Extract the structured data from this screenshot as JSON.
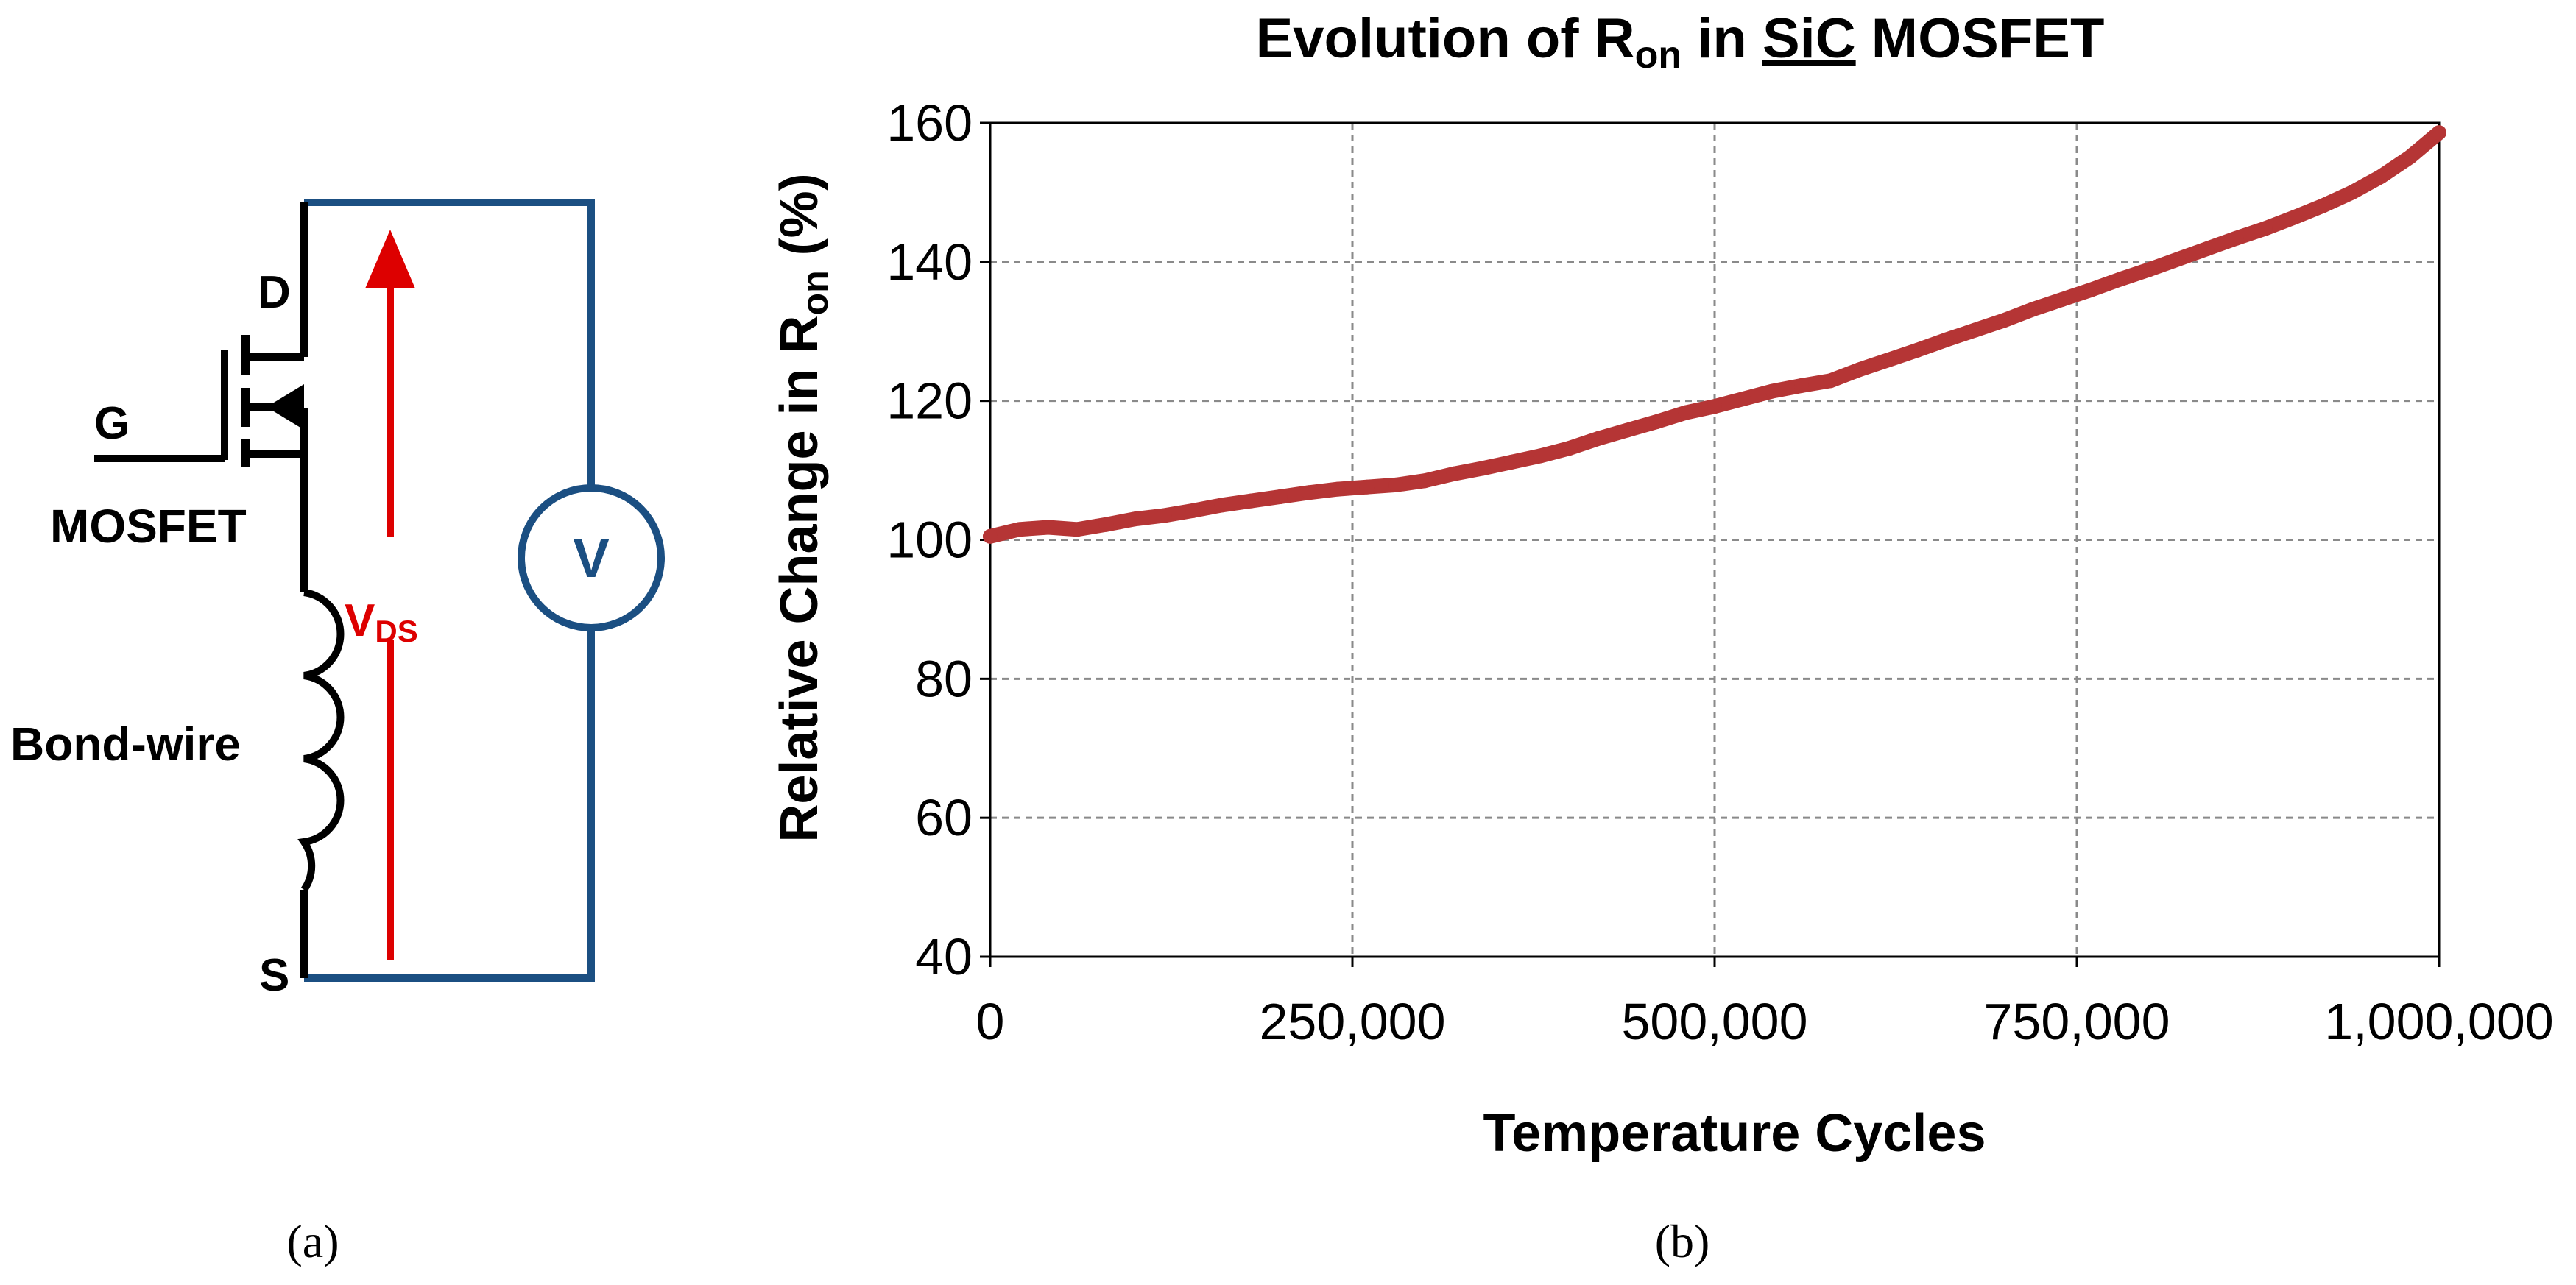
{
  "panel_a": {
    "label": "(a)",
    "drain_label": "D",
    "gate_label": "G",
    "source_label": "S",
    "device_label": "MOSFET",
    "inductor_label": "Bond-wire",
    "voltage_label_main": "V",
    "voltage_label_sub": "DS",
    "voltmeter_label": "V",
    "colors": {
      "wire": "#1b4f82",
      "arrow": "#dd0000",
      "component": "#000000"
    }
  },
  "panel_b": {
    "label": "(b)"
  },
  "chart_data": {
    "type": "line",
    "title": {
      "prefix": "Evolution of R",
      "subscript": "on",
      "middle": " in ",
      "underlined": "SiC",
      "suffix": " MOSFET"
    },
    "xlabel": "Temperature Cycles",
    "ylabel": {
      "prefix": "Relative Change in R",
      "subscript": "on",
      "suffix": " (%)"
    },
    "xlim": [
      0,
      1000000
    ],
    "ylim": [
      40,
      160
    ],
    "xticks": [
      0,
      250000,
      500000,
      750000,
      1000000
    ],
    "xtick_labels": [
      "0",
      "250,000",
      "500,000",
      "750,000",
      "1,000,000"
    ],
    "yticks": [
      40,
      60,
      80,
      100,
      120,
      140,
      160
    ],
    "ytick_labels": [
      "40",
      "60",
      "80",
      "100",
      "120",
      "140",
      "160"
    ],
    "grid": true,
    "legend": "none",
    "series": [
      {
        "name": "Relative Change in Ron",
        "color": "#b53535",
        "x": [
          0,
          20000,
          40000,
          60000,
          80000,
          100000,
          120000,
          140000,
          160000,
          180000,
          200000,
          220000,
          240000,
          260000,
          280000,
          300000,
          320000,
          340000,
          360000,
          380000,
          400000,
          420000,
          440000,
          460000,
          480000,
          500000,
          520000,
          540000,
          560000,
          580000,
          600000,
          620000,
          640000,
          660000,
          680000,
          700000,
          720000,
          740000,
          760000,
          780000,
          800000,
          820000,
          840000,
          860000,
          880000,
          900000,
          920000,
          940000,
          960000,
          980000,
          1000000
        ],
        "values": [
          100.5,
          101.5,
          101.8,
          101.5,
          102.2,
          103.0,
          103.5,
          104.2,
          105.0,
          105.6,
          106.2,
          106.8,
          107.3,
          107.6,
          107.9,
          108.5,
          109.5,
          110.3,
          111.2,
          112.1,
          113.2,
          114.6,
          115.8,
          117.0,
          118.3,
          119.2,
          120.3,
          121.4,
          122.2,
          122.9,
          124.5,
          125.9,
          127.3,
          128.8,
          130.2,
          131.6,
          133.2,
          134.6,
          136.0,
          137.5,
          138.9,
          140.4,
          141.9,
          143.4,
          144.8,
          146.4,
          148.1,
          150.0,
          152.3,
          155.1,
          158.6
        ]
      }
    ]
  }
}
